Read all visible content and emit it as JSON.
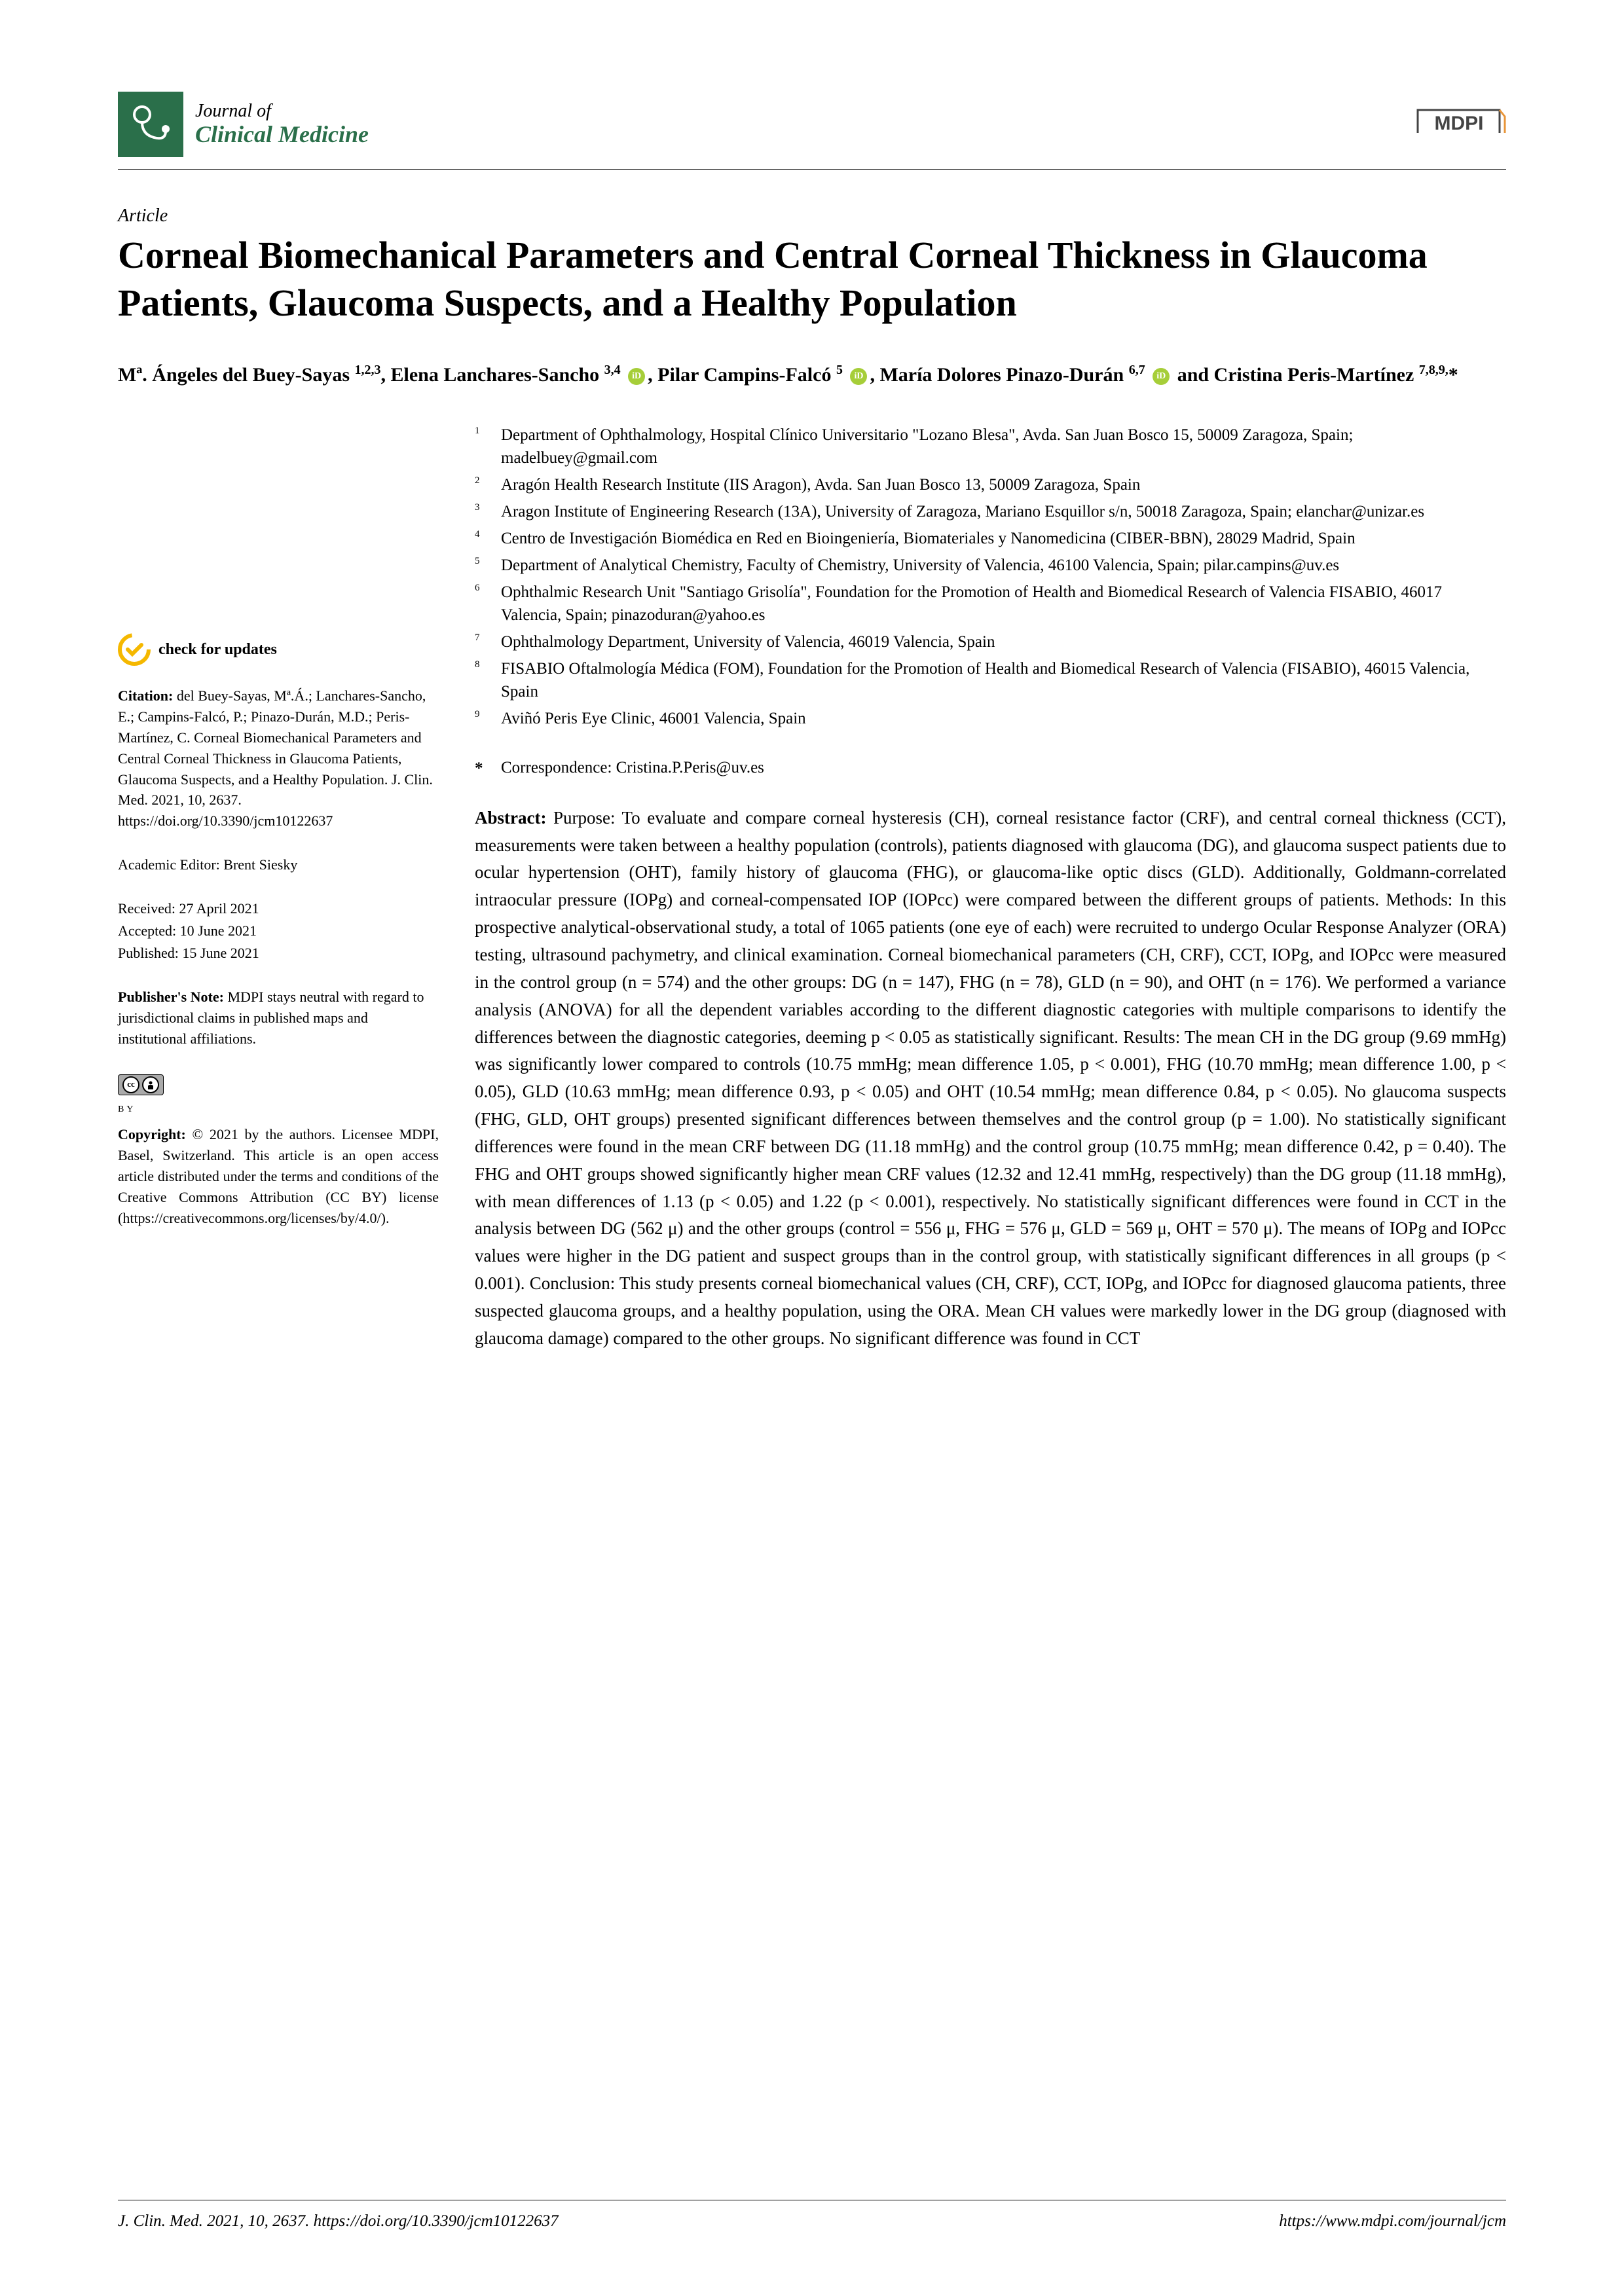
{
  "journal": {
    "line1": "Journal of",
    "line2": "Clinical Medicine",
    "publisher": "MDPI",
    "logo_bg": "#2a6f4a"
  },
  "article": {
    "type": "Article",
    "title": "Corneal Biomechanical Parameters and Central Corneal Thickness in Glaucoma Patients, Glaucoma Suspects, and a Healthy Population"
  },
  "authors_html": "Mª. Ángeles del Buey-Sayas <sup>1,2,3</sup>, Elena Lanchares-Sancho <sup>3,4</sup> <span class='orcid'></span>, Pilar Campins-Falcó <sup>5</sup> <span class='orcid'></span>, María Dolores Pinazo-Durán <sup>6,7</sup> <span class='orcid'></span> and Cristina Peris-Martínez <sup>7,8,9,</sup>*",
  "affiliations": [
    {
      "num": "1",
      "text": "Department of Ophthalmology, Hospital Clínico Universitario \"Lozano Blesa\", Avda. San Juan Bosco 15, 50009 Zaragoza, Spain; madelbuey@gmail.com"
    },
    {
      "num": "2",
      "text": "Aragón Health Research Institute (IIS Aragon), Avda. San Juan Bosco 13, 50009 Zaragoza, Spain"
    },
    {
      "num": "3",
      "text": "Aragon Institute of Engineering Research (13A), University of Zaragoza, Mariano Esquillor s/n, 50018 Zaragoza, Spain; elanchar@unizar.es"
    },
    {
      "num": "4",
      "text": "Centro de Investigación Biomédica en Red en Bioingeniería, Biomateriales y Nanomedicina (CIBER-BBN), 28029 Madrid, Spain"
    },
    {
      "num": "5",
      "text": "Department of Analytical Chemistry, Faculty of Chemistry, University of Valencia, 46100 Valencia, Spain; pilar.campins@uv.es"
    },
    {
      "num": "6",
      "text": "Ophthalmic Research Unit \"Santiago Grisolía\", Foundation for the Promotion of Health and Biomedical Research of Valencia FISABIO, 46017 Valencia, Spain; pinazoduran@yahoo.es"
    },
    {
      "num": "7",
      "text": "Ophthalmology Department, University of Valencia, 46019 Valencia, Spain"
    },
    {
      "num": "8",
      "text": "FISABIO Oftalmología Médica (FOM), Foundation for the Promotion of Health and Biomedical Research of Valencia (FISABIO), 46015 Valencia, Spain"
    },
    {
      "num": "9",
      "text": "Aviñó Peris Eye Clinic, 46001 Valencia, Spain"
    }
  ],
  "correspondence": {
    "star": "*",
    "text": "Correspondence: Cristina.P.Peris@uv.es"
  },
  "abstract": {
    "label": "Abstract:",
    "text": " Purpose: To evaluate and compare corneal hysteresis (CH), corneal resistance factor (CRF), and central corneal thickness (CCT), measurements were taken between a healthy population (controls), patients diagnosed with glaucoma (DG), and glaucoma suspect patients due to ocular hypertension (OHT), family history of glaucoma (FHG), or glaucoma-like optic discs (GLD). Additionally, Goldmann-correlated intraocular pressure (IOPg) and corneal-compensated IOP (IOPcc) were compared between the different groups of patients. Methods: In this prospective analytical-observational study, a total of 1065 patients (one eye of each) were recruited to undergo Ocular Response Analyzer (ORA) testing, ultrasound pachymetry, and clinical examination. Corneal biomechanical parameters (CH, CRF), CCT, IOPg, and IOPcc were measured in the control group (n = 574) and the other groups: DG (n = 147), FHG (n = 78), GLD (n = 90), and OHT (n = 176). We performed a variance analysis (ANOVA) for all the dependent variables according to the different diagnostic categories with multiple comparisons to identify the differences between the diagnostic categories, deeming p < 0.05 as statistically significant. Results: The mean CH in the DG group (9.69 mmHg) was significantly lower compared to controls (10.75 mmHg; mean difference 1.05, p < 0.001), FHG (10.70 mmHg; mean difference 1.00, p < 0.05), GLD (10.63 mmHg; mean difference 0.93, p < 0.05) and OHT (10.54 mmHg; mean difference 0.84, p < 0.05). No glaucoma suspects (FHG, GLD, OHT groups) presented significant differences between themselves and the control group (p = 1.00). No statistically significant differences were found in the mean CRF between DG (11.18 mmHg) and the control group (10.75 mmHg; mean difference 0.42, p = 0.40). The FHG and OHT groups showed significantly higher mean CRF values (12.32 and 12.41 mmHg, respectively) than the DG group (11.18 mmHg), with mean differences of 1.13 (p < 0.05) and 1.22 (p < 0.001), respectively. No statistically significant differences were found in CCT in the analysis between DG (562 μ) and the other groups (control = 556 μ, FHG = 576 μ, GLD = 569 μ, OHT = 570 μ). The means of IOPg and IOPcc values were higher in the DG patient and suspect groups than in the control group, with statistically significant differences in all groups (p < 0.001). Conclusion: This study presents corneal biomechanical values (CH, CRF), CCT, IOPg, and IOPcc for diagnosed glaucoma patients, three suspected glaucoma groups, and a healthy population, using the ORA. Mean CH values were markedly lower in the DG group (diagnosed with glaucoma damage) compared to the other groups. No significant difference was found in CCT"
  },
  "sidebar": {
    "check_updates": "check for updates",
    "citation_label": "Citation:",
    "citation_text": " del Buey-Sayas, Mª.Á.; Lanchares-Sancho, E.; Campins-Falcó, P.; Pinazo-Durán, M.D.; Peris-Martínez, C. Corneal Biomechanical Parameters and Central Corneal Thickness in Glaucoma Patients, Glaucoma Suspects, and a Healthy Population. J. Clin. Med. 2021, 10, 2637. https://doi.org/10.3390/jcm10122637",
    "editor": "Academic Editor: Brent Siesky",
    "received": "Received: 27 April 2021",
    "accepted": "Accepted: 10 June 2021",
    "published": "Published: 15 June 2021",
    "pubnote_label": "Publisher's Note:",
    "pubnote_text": " MDPI stays neutral with regard to jurisdictional claims in published maps and institutional affiliations.",
    "copyright_label": "Copyright:",
    "copyright_text": " © 2021 by the authors. Licensee MDPI, Basel, Switzerland. This article is an open access article distributed under the terms and conditions of the Creative Commons Attribution (CC BY) license (https://creativecommons.org/licenses/by/4.0/)."
  },
  "footer": {
    "left": "J. Clin. Med. 2021, 10, 2637. https://doi.org/10.3390/jcm10122637",
    "right": "https://www.mdpi.com/journal/jcm"
  },
  "colors": {
    "text": "#000000",
    "background": "#ffffff",
    "journal_green": "#2a6f4a",
    "orcid_green": "#a6ce39",
    "mdpi_orange": "#e8963a",
    "check_yellow": "#f5b800"
  },
  "typography": {
    "title_fontsize": 58,
    "authors_fontsize": 30,
    "body_fontsize": 27,
    "sidebar_fontsize": 22,
    "affil_fontsize": 25,
    "footer_fontsize": 25,
    "font_family": "Palatino"
  }
}
